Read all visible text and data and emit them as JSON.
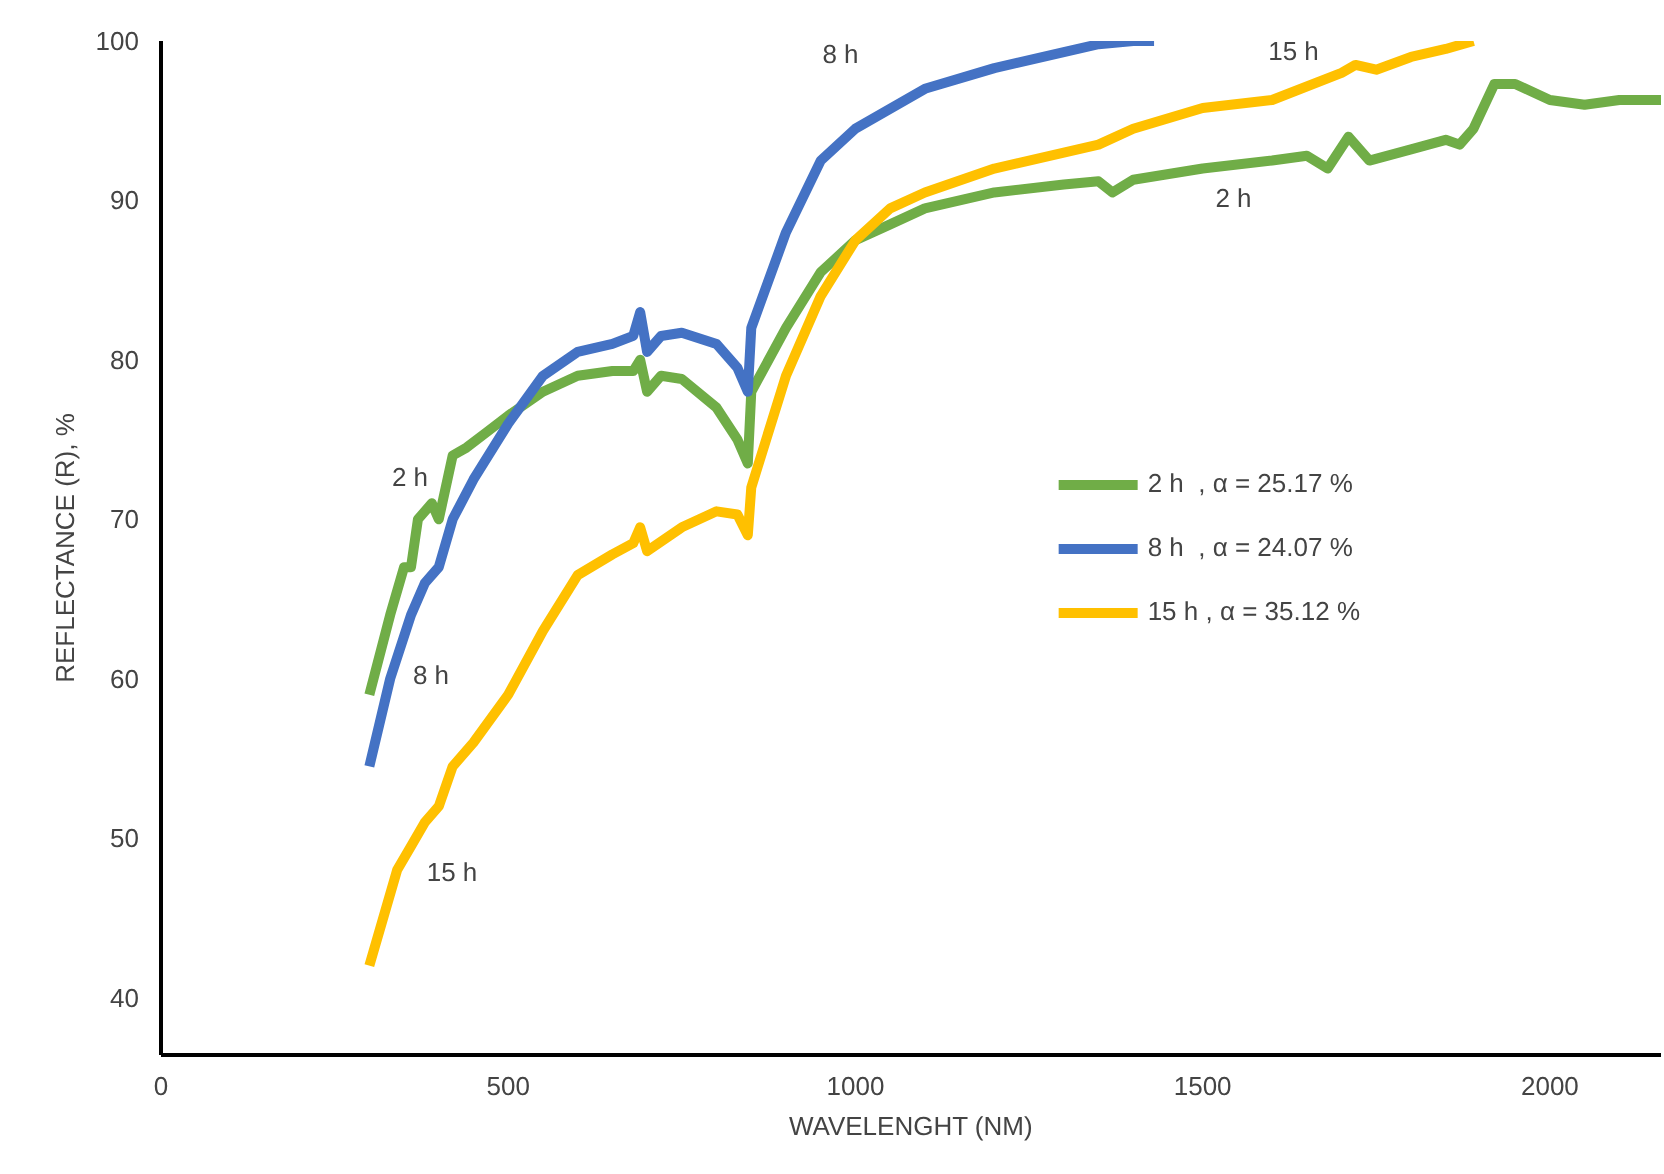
{
  "chart_data": {
    "type": "line",
    "xlabel": "WAVELENGHT (NM)",
    "ylabel": "REFLECTANCE (R), %",
    "xlim": [
      0,
      2160
    ],
    "ylim": [
      36.4,
      100
    ],
    "xticks": [
      0,
      500,
      1000,
      1500,
      2000
    ],
    "yticks": [
      40,
      50,
      60,
      70,
      80,
      90,
      100
    ],
    "grid": false,
    "legend": "right",
    "line_style": "solid",
    "series": [
      {
        "name": "2 h  , α = 25.17 %",
        "color": "#70ad47",
        "x": [
          300,
          330,
          350,
          360,
          370,
          390,
          400,
          420,
          440,
          470,
          500,
          550,
          600,
          650,
          680,
          690,
          700,
          720,
          750,
          800,
          830,
          845,
          850,
          900,
          950,
          1000,
          1050,
          1100,
          1200,
          1300,
          1350,
          1370,
          1400,
          1500,
          1600,
          1650,
          1680,
          1710,
          1740,
          1800,
          1850,
          1870,
          1890,
          1920,
          1950,
          2000,
          2050,
          2100,
          2160
        ],
        "values": [
          59,
          64,
          67,
          67,
          70,
          71,
          70,
          74,
          74.5,
          75.5,
          76.5,
          78,
          79,
          79.3,
          79.3,
          80,
          78,
          79,
          78.8,
          77,
          75,
          73.5,
          78,
          82,
          85.5,
          87.5,
          88.5,
          89.5,
          90.5,
          91,
          91.2,
          90.5,
          91.3,
          92,
          92.5,
          92.8,
          92,
          94,
          92.5,
          93.2,
          93.8,
          93.5,
          94.5,
          97.3,
          97.3,
          96.3,
          96,
          96.3,
          96.3
        ]
      },
      {
        "name": "8 h  , α = 24.07 %",
        "color": "#4472c4",
        "x": [
          300,
          330,
          360,
          380,
          400,
          420,
          450,
          500,
          550,
          600,
          650,
          680,
          690,
          700,
          720,
          750,
          800,
          830,
          845,
          850,
          900,
          950,
          1000,
          1100,
          1200,
          1300,
          1350,
          1400,
          1430
        ],
        "values": [
          54.5,
          60,
          64,
          66,
          67,
          70,
          72.5,
          76,
          79,
          80.5,
          81,
          81.5,
          83,
          80.5,
          81.5,
          81.7,
          81,
          79.5,
          78,
          82,
          88,
          92.5,
          94.5,
          97,
          98.3,
          99.3,
          99.8,
          100,
          100
        ]
      },
      {
        "name": "15 h , α = 35.12 %",
        "color": "#ffc000",
        "x": [
          300,
          320,
          340,
          360,
          380,
          400,
          420,
          450,
          500,
          550,
          600,
          650,
          680,
          690,
          700,
          750,
          800,
          830,
          845,
          850,
          900,
          950,
          1000,
          1050,
          1100,
          1200,
          1300,
          1350,
          1400,
          1500,
          1600,
          1700,
          1720,
          1750,
          1800,
          1850,
          1890
        ],
        "values": [
          42,
          45,
          48,
          49.5,
          51,
          52,
          54.5,
          56,
          59,
          63,
          66.5,
          67.8,
          68.5,
          69.5,
          68,
          69.5,
          70.5,
          70.3,
          69,
          72,
          79,
          84,
          87.5,
          89.5,
          90.5,
          92,
          93,
          93.5,
          94.5,
          95.8,
          96.3,
          98,
          98.5,
          98.2,
          99,
          99.5,
          100
        ]
      }
    ],
    "annotations": [
      "2 h",
      "8 h",
      "15 h",
      "8 h",
      "15 h",
      "2 h"
    ]
  }
}
